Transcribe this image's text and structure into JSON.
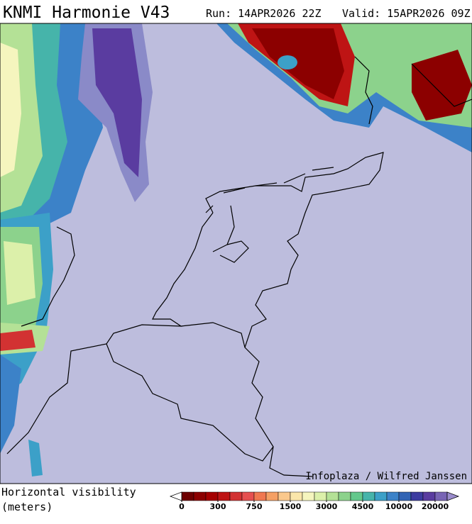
{
  "header": {
    "title": "KNMI Harmonie V43",
    "run": "Run: 14APR2026 22Z",
    "valid": "Valid: 15APR2026 09Z"
  },
  "credit": "Infoplaza / Wilfred Janssen",
  "legend": {
    "title": "Horizontal visibility",
    "unit": "(meters)",
    "colors": [
      "#6e0000",
      "#8c0000",
      "#a50000",
      "#be1414",
      "#d23232",
      "#e65050",
      "#f07850",
      "#f5a064",
      "#fac88c",
      "#fae6aa",
      "#f5f5be",
      "#dcf0aa",
      "#b4e196",
      "#8cd28c",
      "#64c88c",
      "#46b4aa",
      "#3ca0c8",
      "#3c82c8",
      "#3264b4",
      "#3c3ca0",
      "#5a3ca0",
      "#7864b4"
    ],
    "ticks": [
      0,
      300,
      750,
      1500,
      3000,
      4500,
      10000,
      20000
    ]
  }
}
